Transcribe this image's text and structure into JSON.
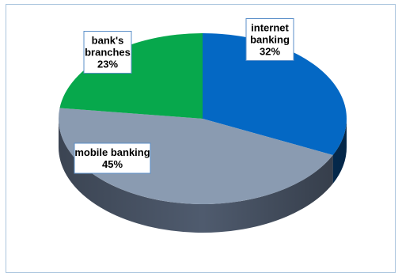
{
  "chart_data": {
    "type": "pie",
    "title": "",
    "style": "3d",
    "slices": [
      {
        "label_lines": [
          "internet",
          "banking"
        ],
        "label": "internet banking",
        "value": 32,
        "value_text": "32%",
        "color": "#0468C4",
        "side_color": "#063B6E"
      },
      {
        "label_lines": [
          "mobile banking"
        ],
        "label": "mobile banking",
        "value": 45,
        "value_text": "45%",
        "color": "#8A9BB1",
        "side_color": "#4F5B6E"
      },
      {
        "label_lines": [
          "bank's",
          "branches"
        ],
        "label": "bank's branches",
        "value": 23,
        "value_text": "23%",
        "color": "#07A84C",
        "side_color": "#056A30"
      }
    ]
  }
}
